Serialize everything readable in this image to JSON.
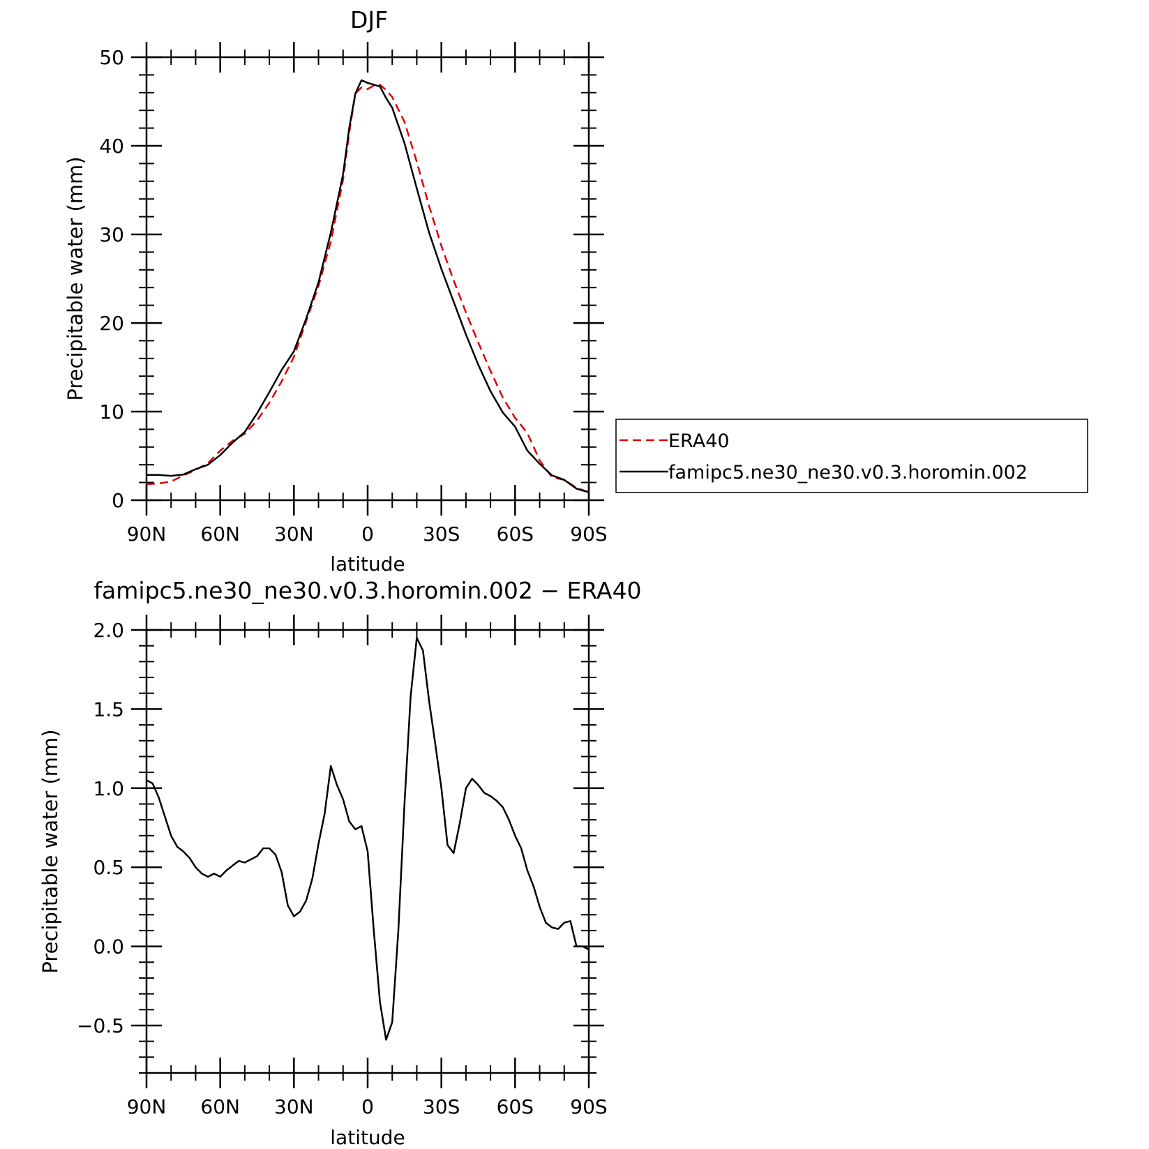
{
  "colors": {
    "model": "#000000",
    "obs": "#e00000",
    "frame": "#000000"
  },
  "legend": {
    "entries": [
      "ERA40",
      "famipc5.ne30_ne30.v0.3.horomin.002"
    ],
    "placement": "right"
  },
  "chart_data": [
    {
      "type": "line",
      "title": "DJF",
      "xlabel": "latitude",
      "ylabel": "Precipitable water (mm)",
      "xlim": [
        90,
        -90
      ],
      "ylim": [
        0,
        50
      ],
      "xticks": [
        90,
        60,
        30,
        0,
        -30,
        -60,
        -90
      ],
      "xtick_labels": [
        "90N",
        "60N",
        "30N",
        "0",
        "30S",
        "60S",
        "90S"
      ],
      "yticks": [
        0,
        10,
        20,
        30,
        40,
        50
      ],
      "ytick_labels": [
        "0",
        "10",
        "20",
        "30",
        "40",
        "50"
      ],
      "series": [
        {
          "name": "ERA40",
          "style": "dashed",
          "x": [
            90,
            85,
            80,
            75,
            70,
            65,
            60,
            55,
            50,
            45,
            40,
            35,
            30,
            25,
            20,
            15,
            10,
            7.5,
            5,
            2.5,
            0,
            -2.5,
            -5,
            -7.5,
            -10,
            -15,
            -20,
            -25,
            -30,
            -35,
            -40,
            -45,
            -50,
            -55,
            -60,
            -65,
            -70,
            -75,
            -80,
            -85,
            -90
          ],
          "values": [
            1.8,
            1.9,
            2.1,
            2.8,
            3.4,
            4.2,
            5.6,
            6.7,
            7.5,
            9.0,
            11.0,
            13.4,
            16.2,
            20.2,
            24.2,
            29.2,
            36.2,
            41.5,
            45.9,
            46.6,
            46.4,
            46.8,
            46.9,
            46.3,
            45.5,
            42.7,
            38.2,
            33.2,
            28.7,
            24.8,
            21.2,
            17.8,
            14.6,
            11.6,
            9.3,
            7.6,
            4.5,
            2.6,
            2.3,
            1.4,
            0.9
          ]
        },
        {
          "name": "famipc5.ne30_ne30.v0.3.horomin.002",
          "style": "solid",
          "x": [
            90,
            85,
            80,
            75,
            70,
            65,
            60,
            55,
            50,
            45,
            40,
            35,
            30,
            25,
            20,
            15,
            10,
            7.5,
            5,
            2.5,
            0,
            -2.5,
            -5,
            -7.5,
            -10,
            -15,
            -20,
            -25,
            -30,
            -35,
            -40,
            -45,
            -50,
            -55,
            -60,
            -65,
            -70,
            -75,
            -80,
            -85,
            -90
          ],
          "values": [
            2.85,
            2.85,
            2.75,
            2.9,
            3.5,
            4.0,
            5.1,
            6.5,
            7.7,
            9.8,
            12.2,
            14.7,
            16.8,
            20.5,
            24.6,
            30.2,
            36.8,
            42.0,
            45.9,
            47.4,
            47.1,
            46.9,
            46.7,
            45.4,
            44.3,
            40.3,
            35.2,
            30.2,
            26.1,
            22.4,
            18.7,
            15.3,
            12.3,
            9.9,
            8.3,
            5.6,
            4.1,
            2.8,
            2.3,
            1.3,
            0.9
          ]
        }
      ]
    },
    {
      "type": "line",
      "title": "famipc5.ne30_ne30.v0.3.horomin.002 - ERA40",
      "xlabel": "latitude",
      "ylabel": "Precipitable water (mm)",
      "xlim": [
        90,
        -90
      ],
      "ylim": [
        -0.8,
        2.0
      ],
      "xticks": [
        90,
        60,
        30,
        0,
        -30,
        -60,
        -90
      ],
      "xtick_labels": [
        "90N",
        "60N",
        "30N",
        "0",
        "30S",
        "60S",
        "90S"
      ],
      "yticks": [
        -0.5,
        0.0,
        0.5,
        1.0,
        1.5,
        2.0
      ],
      "ytick_labels": [
        "-0.5",
        "0.0",
        "0.5",
        "1.0",
        "1.5",
        "2.0"
      ],
      "series": [
        {
          "style": "solid",
          "x": [
            90,
            87.5,
            85,
            82.5,
            80,
            77.5,
            75,
            72.5,
            70,
            67.5,
            65,
            62.5,
            60,
            57.5,
            55,
            52.5,
            50,
            47.5,
            45,
            42.5,
            40,
            37.5,
            35,
            32.5,
            30,
            27.5,
            25,
            22.5,
            20,
            17.5,
            15,
            12.5,
            10,
            7.5,
            5,
            2.5,
            0,
            -2.5,
            -5,
            -7.5,
            -10,
            -12.5,
            -15,
            -17.5,
            -20,
            -22.5,
            -25,
            -27.5,
            -30,
            -32.5,
            -35,
            -37.5,
            -40,
            -42.5,
            -45,
            -47.5,
            -50,
            -52.5,
            -55,
            -57.5,
            -60,
            -62.5,
            -65,
            -67.5,
            -70,
            -72.5,
            -75,
            -77.5,
            -80,
            -82.5,
            -85,
            -87.5,
            -90
          ],
          "values": [
            1.05,
            1.03,
            0.94,
            0.82,
            0.7,
            0.63,
            0.6,
            0.56,
            0.5,
            0.46,
            0.44,
            0.46,
            0.44,
            0.48,
            0.51,
            0.54,
            0.53,
            0.55,
            0.57,
            0.62,
            0.62,
            0.58,
            0.47,
            0.26,
            0.19,
            0.22,
            0.29,
            0.43,
            0.65,
            0.84,
            1.14,
            1.02,
            0.93,
            0.79,
            0.74,
            0.76,
            0.6,
            0.1,
            -0.35,
            -0.59,
            -0.48,
            0.1,
            0.9,
            1.58,
            1.95,
            1.87,
            1.55,
            1.28,
            1.0,
            0.64,
            0.59,
            0.78,
            1.0,
            1.06,
            1.02,
            0.97,
            0.95,
            0.92,
            0.88,
            0.8,
            0.7,
            0.62,
            0.48,
            0.38,
            0.25,
            0.15,
            0.12,
            0.11,
            0.15,
            0.16,
            0.0,
            0.0,
            -0.02
          ]
        }
      ]
    }
  ]
}
